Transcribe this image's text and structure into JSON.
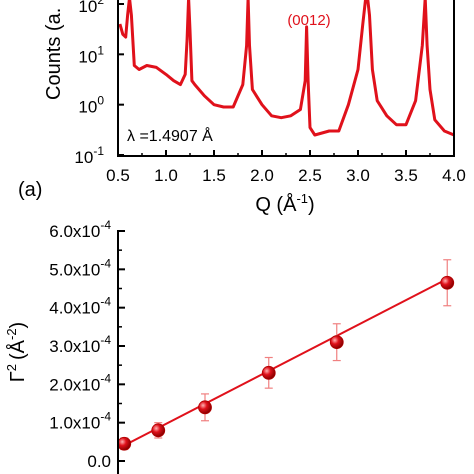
{
  "colors": {
    "accent": "#e0111b",
    "axis": "#000000",
    "background": "#ffffff"
  },
  "panel_label_a": "(a)",
  "chart_data": [
    {
      "type": "line",
      "panel": "(a)",
      "xlabel": "Q (Å",
      "xlabel_sup": "-1",
      "xlabel_close": ")",
      "ylabel": "Counts (a.",
      "yscale": "log",
      "xlim": [
        0.5,
        4.0
      ],
      "ylim": [
        0.1,
        300
      ],
      "x_ticks": [
        "0.5",
        "1.0",
        "1.5",
        "2.0",
        "2.5",
        "3.0",
        "3.5",
        "4.0"
      ],
      "y_ticks": [
        {
          "base": "10",
          "exp": "-1",
          "value": 0.1
        },
        {
          "base": "10",
          "exp": "0",
          "value": 1
        },
        {
          "base": "10",
          "exp": "1",
          "value": 10
        },
        {
          "base": "10",
          "exp": "2",
          "value": 100
        }
      ],
      "annotations": [
        {
          "text": "(0012)",
          "x": 2.47,
          "y": 60
        },
        {
          "text": "λ =1.4907 Å",
          "x": 0.57,
          "y": 0.3
        }
      ],
      "series": [
        {
          "x": [
            0.52,
            0.55,
            0.58,
            0.6,
            0.62,
            0.64,
            0.67,
            0.72,
            0.8,
            0.9,
            1.0,
            1.08,
            1.15,
            1.2,
            1.22,
            1.235,
            1.25,
            1.27,
            1.3,
            1.4,
            1.5,
            1.6,
            1.7,
            1.8,
            1.84,
            1.855,
            1.87,
            1.9,
            2.0,
            2.1,
            2.2,
            2.3,
            2.4,
            2.45,
            2.465,
            2.48,
            2.5,
            2.55,
            2.7,
            2.8,
            2.9,
            3.0,
            3.05,
            3.08,
            3.1,
            3.12,
            3.15,
            3.2,
            3.3,
            3.4,
            3.5,
            3.6,
            3.67,
            3.7,
            3.72,
            3.75,
            3.8,
            3.9,
            4.0
          ],
          "y": [
            40,
            25,
            22,
            60,
            300,
            60,
            6,
            5,
            6,
            5.5,
            4,
            3,
            2.5,
            4,
            20,
            200,
            30,
            3,
            2.5,
            1.5,
            1.0,
            0.9,
            0.9,
            2.5,
            15,
            300,
            15,
            2,
            1.0,
            0.6,
            0.55,
            0.6,
            0.8,
            3,
            35,
            3,
            0.35,
            0.25,
            0.3,
            0.3,
            1.0,
            5,
            40,
            300,
            300,
            60,
            5,
            1.2,
            0.6,
            0.4,
            0.4,
            1.2,
            15,
            250,
            15,
            2,
            0.5,
            0.3,
            0.25
          ]
        }
      ]
    },
    {
      "type": "scatter",
      "ylabel": "Γ",
      "ylabel_sup": "2",
      "ylabel_unit": "(Å",
      "ylabel_unit_sup": "-2",
      "ylabel_close": ")",
      "ylim": [
        0,
        0.0006
      ],
      "xlim": [
        0.5,
        4.5
      ],
      "y_ticks": [
        {
          "label": "0.0",
          "value": 0
        },
        {
          "base": "1.0x10",
          "exp": "-4",
          "value": 0.0001
        },
        {
          "base": "2.0x10",
          "exp": "-4",
          "value": 0.0002
        },
        {
          "base": "3.0x10",
          "exp": "-4",
          "value": 0.0003
        },
        {
          "base": "4.0x10",
          "exp": "-4",
          "value": 0.0004
        },
        {
          "base": "5.0x10",
          "exp": "-4",
          "value": 0.0005
        },
        {
          "base": "6.0x10",
          "exp": "-4",
          "value": 0.0006
        }
      ],
      "points": [
        {
          "x": 0.55,
          "y": 4.5e-05,
          "err": 1.5e-05
        },
        {
          "x": 0.95,
          "y": 8e-05,
          "err": 2e-05
        },
        {
          "x": 1.5,
          "y": 0.00014,
          "err": 3.5e-05
        },
        {
          "x": 2.25,
          "y": 0.00023,
          "err": 4e-05
        },
        {
          "x": 3.05,
          "y": 0.00031,
          "err": 4.8e-05
        },
        {
          "x": 4.35,
          "y": 0.000465,
          "err": 6e-05
        }
      ],
      "fit": {
        "x": [
          0.5,
          4.35
        ],
        "y": [
          3.5e-05,
          0.000475
        ]
      }
    }
  ]
}
